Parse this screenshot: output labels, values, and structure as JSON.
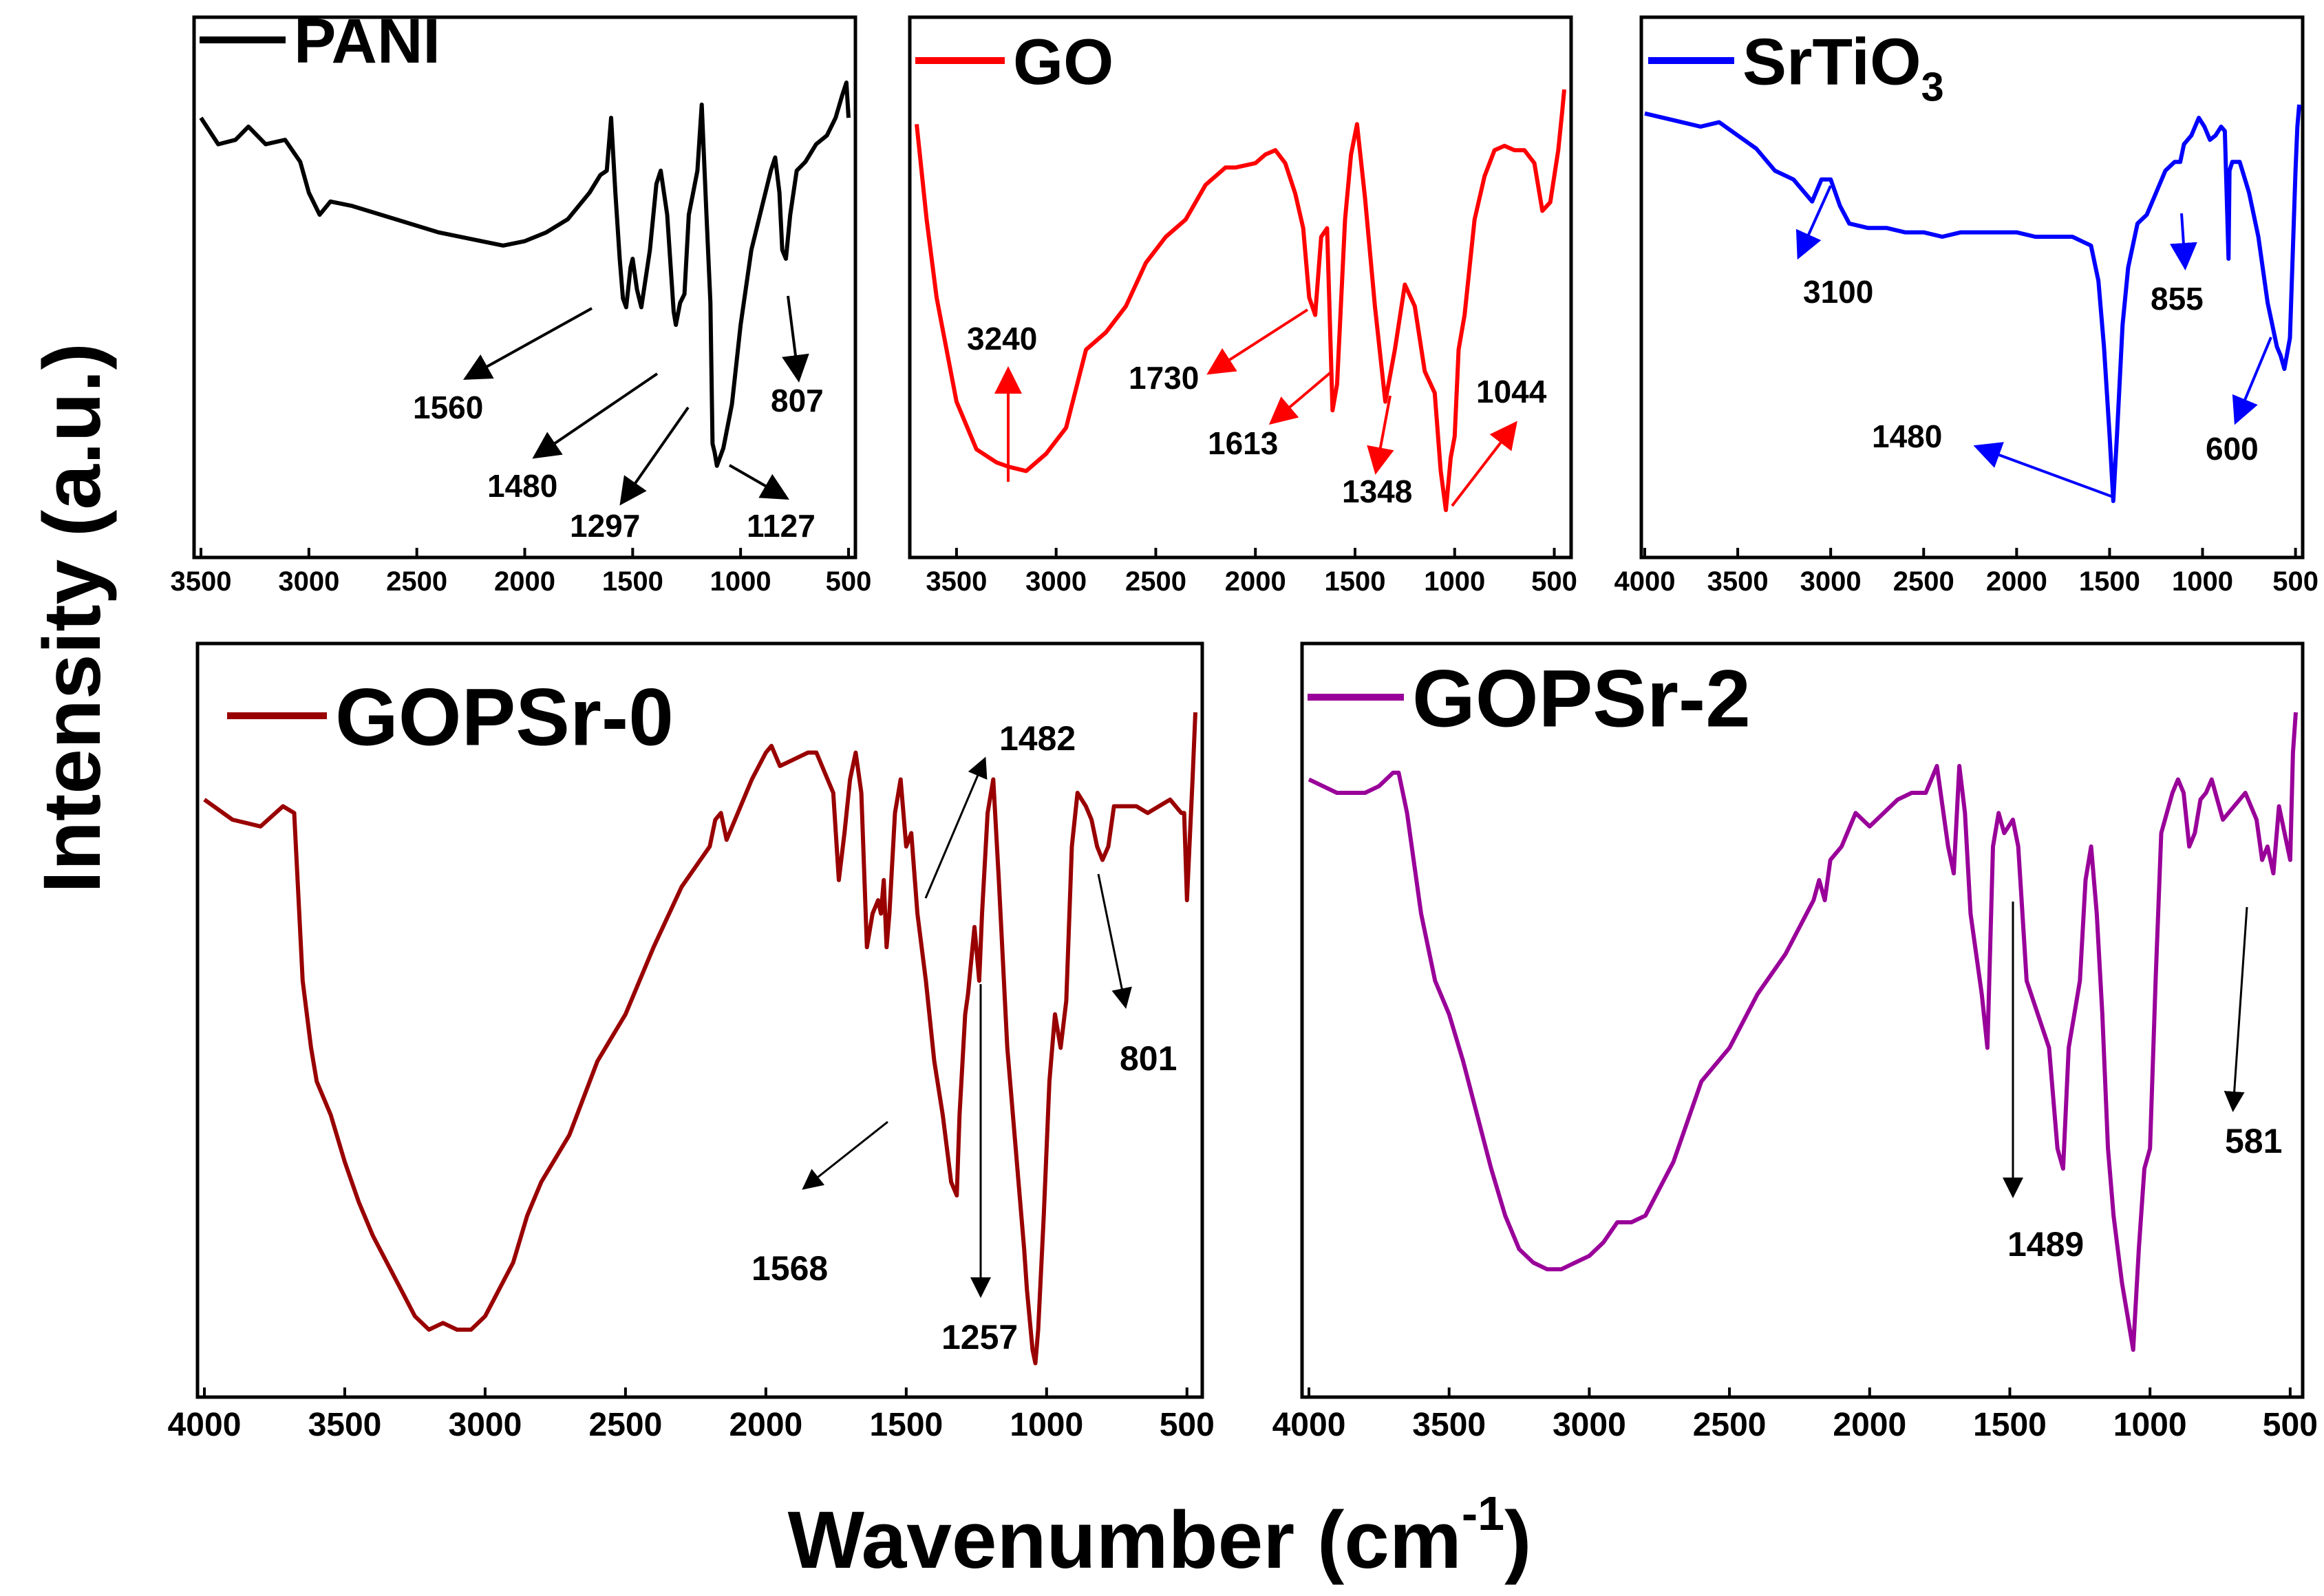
{
  "figure": {
    "ylabel": "Intensity (a.u.)",
    "xlabel_main": "Wavenumber (cm",
    "xlabel_sup": "-1",
    "xlabel_end": ")"
  },
  "chart_data": [
    {
      "type": "line",
      "title": "PANI",
      "legend": [
        {
          "text": "PANI"
        }
      ],
      "color": "#000000",
      "xlabel": "Wavenumber (cm-1)",
      "ylabel": "Intensity (a.u.)",
      "xlim": [
        3500,
        500
      ],
      "ylim": [
        0,
        100
      ],
      "xticks": [
        {
          "v": 3500,
          "label": "3500"
        },
        {
          "v": 3000,
          "label": "3000"
        },
        {
          "v": 2500,
          "label": "2500"
        },
        {
          "v": 2000,
          "label": "2000"
        },
        {
          "v": 1500,
          "label": "1500"
        },
        {
          "v": 1000,
          "label": "1000"
        },
        {
          "v": 500,
          "label": "500"
        }
      ],
      "x": [
        3500,
        3420,
        3340,
        3280,
        3200,
        3110,
        3040,
        3000,
        2950,
        2900,
        2800,
        2600,
        2400,
        2200,
        2100,
        2000,
        1900,
        1800,
        1700,
        1650,
        1620,
        1600,
        1580,
        1560,
        1545,
        1530,
        1510,
        1500,
        1480,
        1460,
        1420,
        1390,
        1370,
        1340,
        1310,
        1300,
        1280,
        1260,
        1240,
        1220,
        1200,
        1180,
        1160,
        1140,
        1130,
        1120,
        1110,
        1080,
        1040,
        1000,
        950,
        900,
        860,
        840,
        820,
        807,
        790,
        770,
        740,
        700,
        650,
        600,
        560,
        530,
        510,
        500
      ],
      "y": [
        92,
        86,
        87,
        90,
        86,
        87,
        82,
        75,
        70,
        73,
        72,
        69,
        66,
        64,
        63,
        64,
        66,
        69,
        75,
        79,
        80,
        92,
        75,
        60,
        51,
        49,
        58,
        60,
        53,
        49,
        62,
        77,
        80,
        70,
        48,
        45,
        50,
        52,
        70,
        75,
        80,
        95,
        72,
        50,
        18,
        16,
        13,
        17,
        27,
        45,
        62,
        72,
        80,
        83,
        75,
        62,
        60,
        70,
        80,
        82,
        86,
        88,
        92,
        97,
        100,
        92
      ],
      "annotations": [
        {
          "text": "1560",
          "x": 1580,
          "y": 52
        },
        {
          "text": "1480",
          "x": 1480,
          "y": 43
        },
        {
          "text": "1297",
          "x": 1297,
          "y": 46
        },
        {
          "text": "1127",
          "x": 1127,
          "y": 15
        },
        {
          "text": "807",
          "x": 807,
          "y": 62
        }
      ]
    },
    {
      "type": "line",
      "title": "GO",
      "legend": [
        {
          "text": "GO"
        }
      ],
      "color": "#ff0000",
      "xlabel": "Wavenumber (cm-1)",
      "ylabel": "Intensity (a.u.)",
      "xlim": [
        3700,
        450
      ],
      "ylim": [
        0,
        100
      ],
      "xticks": [
        {
          "v": 3500,
          "label": "3500"
        },
        {
          "v": 3000,
          "label": "3000"
        },
        {
          "v": 2500,
          "label": "2500"
        },
        {
          "v": 2000,
          "label": "2000"
        },
        {
          "v": 1500,
          "label": "1500"
        },
        {
          "v": 1000,
          "label": "1000"
        },
        {
          "v": 500,
          "label": "500"
        }
      ],
      "x": [
        3700,
        3650,
        3600,
        3500,
        3400,
        3300,
        3240,
        3150,
        3050,
        2950,
        2850,
        2750,
        2650,
        2550,
        2450,
        2350,
        2250,
        2200,
        2150,
        2100,
        2000,
        1950,
        1900,
        1850,
        1800,
        1760,
        1730,
        1700,
        1670,
        1640,
        1613,
        1590,
        1550,
        1520,
        1490,
        1450,
        1400,
        1348,
        1300,
        1250,
        1200,
        1150,
        1100,
        1070,
        1044,
        1020,
        1000,
        980,
        950,
        900,
        850,
        800,
        750,
        700,
        650,
        600,
        560,
        520,
        480,
        460,
        450
      ],
      "y": [
        92,
        70,
        52,
        28,
        17,
        14,
        13,
        12,
        16,
        22,
        40,
        44,
        50,
        60,
        66,
        70,
        78,
        80,
        82,
        82,
        83,
        85,
        86,
        83,
        76,
        68,
        52,
        48,
        66,
        68,
        26,
        32,
        70,
        85,
        92,
        75,
        50,
        28,
        40,
        55,
        50,
        35,
        30,
        12,
        3,
        15,
        20,
        40,
        48,
        70,
        80,
        86,
        87,
        86,
        86,
        83,
        72,
        74,
        86,
        95,
        100
      ],
      "annotations": [
        {
          "text": "3240",
          "x": 3240,
          "y": 13
        },
        {
          "text": "1730",
          "x": 1730,
          "y": 52
        },
        {
          "text": "1613",
          "x": 1613,
          "y": 26
        },
        {
          "text": "1348",
          "x": 1348,
          "y": 28
        },
        {
          "text": "1044",
          "x": 1044,
          "y": 3
        }
      ]
    },
    {
      "type": "line",
      "title": "SrTiO3",
      "legend": [
        {
          "text": "SrTiO",
          "sub": "3"
        }
      ],
      "color": "#0000ff",
      "xlabel": "Wavenumber (cm-1)",
      "ylabel": "Intensity (a.u.)",
      "xlim": [
        4000,
        480
      ],
      "ylim": [
        0,
        100
      ],
      "xticks": [
        {
          "v": 4000,
          "label": "4000"
        },
        {
          "v": 3500,
          "label": "3500"
        },
        {
          "v": 3000,
          "label": "3000"
        },
        {
          "v": 2500,
          "label": "2500"
        },
        {
          "v": 2000,
          "label": "2000"
        },
        {
          "v": 1500,
          "label": "1500"
        },
        {
          "v": 1000,
          "label": "1000"
        },
        {
          "v": 500,
          "label": "500"
        }
      ],
      "x": [
        4000,
        3900,
        3800,
        3700,
        3600,
        3500,
        3400,
        3300,
        3200,
        3100,
        3050,
        3000,
        2950,
        2900,
        2800,
        2700,
        2600,
        2500,
        2400,
        2300,
        2200,
        2100,
        2000,
        1900,
        1800,
        1700,
        1650,
        1600,
        1560,
        1530,
        1500,
        1480,
        1460,
        1430,
        1400,
        1350,
        1300,
        1250,
        1200,
        1150,
        1120,
        1100,
        1060,
        1040,
        1020,
        990,
        960,
        930,
        900,
        880,
        860,
        855,
        840,
        800,
        750,
        700,
        650,
        600,
        580,
        560,
        530,
        500,
        490,
        480
      ],
      "y": [
        93,
        92,
        91,
        90,
        91,
        88,
        85,
        80,
        78,
        73,
        78,
        78,
        72,
        68,
        67,
        67,
        66,
        66,
        65,
        66,
        66,
        66,
        66,
        65,
        65,
        65,
        64,
        63,
        55,
        40,
        20,
        5,
        20,
        45,
        58,
        68,
        70,
        75,
        80,
        82,
        82,
        86,
        88,
        90,
        92,
        90,
        87,
        88,
        90,
        89,
        60,
        80,
        82,
        82,
        75,
        65,
        50,
        40,
        38,
        35,
        42,
        80,
        90,
        95
      ],
      "annotations": [
        {
          "text": "3100",
          "x": 3100,
          "y": 73
        },
        {
          "text": "855",
          "x": 1130,
          "y": 82
        },
        {
          "text": "1480",
          "x": 1480,
          "y": 5
        },
        {
          "text": "600",
          "x": 570,
          "y": 38
        }
      ]
    },
    {
      "type": "line",
      "title": "GOPSr-0",
      "legend": [
        {
          "text": "GOPSr-0"
        }
      ],
      "color": "#990000",
      "xlabel": "Wavenumber (cm-1)",
      "ylabel": "Intensity (a.u.)",
      "xlim": [
        4000,
        470
      ],
      "ylim": [
        0,
        100
      ],
      "xticks": [
        {
          "v": 4000,
          "label": "4000"
        },
        {
          "v": 3500,
          "label": "3500"
        },
        {
          "v": 3000,
          "label": "3000"
        },
        {
          "v": 2500,
          "label": "2500"
        },
        {
          "v": 2000,
          "label": "2000"
        },
        {
          "v": 1500,
          "label": "1500"
        },
        {
          "v": 1000,
          "label": "1000"
        },
        {
          "v": 500,
          "label": "500"
        }
      ],
      "x": [
        4000,
        3900,
        3800,
        3720,
        3680,
        3650,
        3620,
        3600,
        3550,
        3500,
        3450,
        3400,
        3300,
        3250,
        3200,
        3150,
        3100,
        3050,
        3000,
        2950,
        2900,
        2850,
        2800,
        2700,
        2600,
        2500,
        2400,
        2300,
        2200,
        2180,
        2160,
        2140,
        2100,
        2050,
        2000,
        1980,
        1950,
        1900,
        1850,
        1820,
        1780,
        1760,
        1740,
        1720,
        1700,
        1680,
        1660,
        1640,
        1620,
        1600,
        1590,
        1580,
        1570,
        1560,
        1540,
        1520,
        1500,
        1482,
        1460,
        1430,
        1400,
        1370,
        1340,
        1320,
        1310,
        1290,
        1280,
        1257,
        1240,
        1230,
        1210,
        1190,
        1170,
        1140,
        1100,
        1080,
        1070,
        1050,
        1040,
        1030,
        1010,
        990,
        970,
        950,
        930,
        910,
        890,
        860,
        840,
        820,
        801,
        780,
        760,
        720,
        680,
        640,
        600,
        560,
        520,
        510,
        500,
        490,
        480,
        470
      ],
      "y": [
        87,
        84,
        83,
        86,
        85,
        60,
        50,
        45,
        40,
        33,
        27,
        22,
        14,
        10,
        8,
        9,
        8,
        8,
        10,
        14,
        18,
        25,
        30,
        37,
        48,
        55,
        65,
        74,
        80,
        84,
        85,
        81,
        85,
        90,
        94,
        95,
        92,
        93,
        94,
        94,
        90,
        88,
        75,
        82,
        90,
        94,
        88,
        65,
        70,
        72,
        70,
        75,
        65,
        70,
        85,
        90,
        80,
        82,
        70,
        60,
        48,
        40,
        30,
        28,
        40,
        55,
        58,
        68,
        60,
        70,
        85,
        90,
        75,
        50,
        30,
        20,
        14,
        5,
        3,
        8,
        25,
        45,
        55,
        50,
        57,
        80,
        88,
        86,
        84,
        80,
        78,
        80,
        86,
        86,
        86,
        85,
        86,
        87,
        85,
        85,
        72,
        81,
        90,
        100
      ],
      "annotations": [
        {
          "text": "1482",
          "x": 1482,
          "y": 82
        },
        {
          "text": "1568",
          "x": 1568,
          "y": 40
        },
        {
          "text": "1257",
          "x": 1257,
          "y": 60
        },
        {
          "text": "801",
          "x": 801,
          "y": 77
        }
      ]
    },
    {
      "type": "line",
      "title": "GOPSr-2",
      "legend": [
        {
          "text": "GOPSr-2"
        }
      ],
      "color": "#990099",
      "xlabel": "Wavenumber (cm-1)",
      "ylabel": "Intensity (a.u.)",
      "xlim": [
        4000,
        480
      ],
      "ylim": [
        0,
        100
      ],
      "xticks": [
        {
          "v": 4000,
          "label": "4000"
        },
        {
          "v": 3500,
          "label": "3500"
        },
        {
          "v": 3000,
          "label": "3000"
        },
        {
          "v": 2500,
          "label": "2500"
        },
        {
          "v": 2000,
          "label": "2000"
        },
        {
          "v": 1500,
          "label": "1500"
        },
        {
          "v": 1000,
          "label": "1000"
        },
        {
          "v": 500,
          "label": "500"
        }
      ],
      "x": [
        4000,
        3900,
        3800,
        3750,
        3700,
        3680,
        3650,
        3600,
        3550,
        3500,
        3450,
        3400,
        3350,
        3300,
        3250,
        3200,
        3150,
        3100,
        3050,
        3000,
        2950,
        2900,
        2850,
        2800,
        2700,
        2600,
        2500,
        2400,
        2300,
        2200,
        2180,
        2160,
        2140,
        2100,
        2050,
        2000,
        1950,
        1900,
        1850,
        1800,
        1780,
        1760,
        1720,
        1700,
        1680,
        1660,
        1640,
        1600,
        1580,
        1560,
        1540,
        1520,
        1489,
        1470,
        1440,
        1400,
        1360,
        1330,
        1310,
        1290,
        1270,
        1250,
        1230,
        1210,
        1190,
        1170,
        1150,
        1130,
        1100,
        1080,
        1060,
        1040,
        1020,
        1000,
        980,
        960,
        940,
        920,
        900,
        880,
        860,
        840,
        820,
        800,
        780,
        760,
        740,
        700,
        660,
        620,
        600,
        581,
        560,
        540,
        520,
        500,
        490,
        480
      ],
      "y": [
        90,
        88,
        88,
        89,
        91,
        91,
        85,
        70,
        60,
        55,
        48,
        40,
        32,
        25,
        20,
        18,
        17,
        17,
        18,
        19,
        21,
        24,
        24,
        25,
        33,
        45,
        50,
        58,
        64,
        72,
        75,
        72,
        78,
        80,
        85,
        83,
        85,
        87,
        88,
        88,
        90,
        92,
        80,
        76,
        92,
        85,
        70,
        58,
        50,
        80,
        85,
        82,
        84,
        80,
        60,
        55,
        50,
        35,
        32,
        50,
        55,
        60,
        75,
        80,
        70,
        55,
        35,
        25,
        15,
        10,
        5,
        20,
        32,
        35,
        60,
        82,
        85,
        88,
        90,
        88,
        80,
        82,
        87,
        88,
        90,
        87,
        84,
        86,
        88,
        84,
        78,
        80,
        76,
        86,
        82,
        78,
        94,
        100
      ],
      "annotations": [
        {
          "text": "1489",
          "x": 1489,
          "y": 84
        },
        {
          "text": "581",
          "x": 581,
          "y": 80
        }
      ]
    }
  ]
}
